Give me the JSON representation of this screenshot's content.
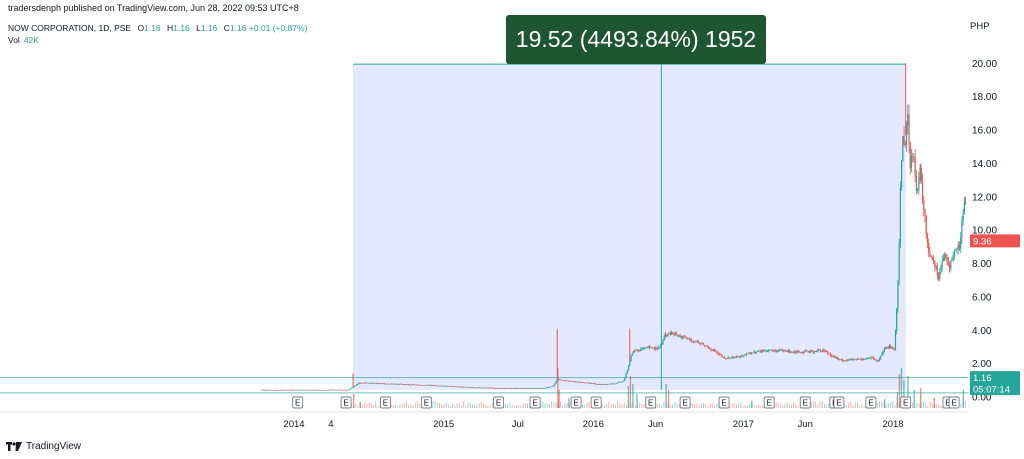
{
  "header": {
    "publisher": "tradersdenph published on TradingView.com, Jun 28, 2022 09:53 UTC+8",
    "symbol": "NOW CORPORATION, 1D, PSE",
    "ohlc": [
      {
        "label": "O",
        "value": "1.16"
      },
      {
        "label": "H",
        "value": "1.16"
      },
      {
        "label": "L",
        "value": "1.16"
      },
      {
        "label": "C",
        "value": "1.16"
      }
    ],
    "change": "+0.01 (+0.87%)",
    "vol_label": "Vol",
    "vol_value": "42K"
  },
  "measure": {
    "text": "19.52 (4493.84%) 1952"
  },
  "footer": {
    "brand": "TradingView"
  },
  "colors": {
    "up": "#26a69a",
    "down": "#ef5350",
    "range_fill": "#dfe4fb",
    "measure_bg": "#1e5631",
    "current_price_tag": "#26a69a",
    "last_price_tag": "#ef5350"
  },
  "chart_data": {
    "type": "candlestick",
    "currency": "PHP",
    "y_ticks": [
      0.0,
      2.0,
      4.0,
      6.0,
      8.0,
      10.0,
      12.0,
      14.0,
      16.0,
      18.0,
      20.0
    ],
    "y_tick_labels": [
      "0.00",
      "2.00",
      "4.00",
      "6.00",
      "8.00",
      "10.00",
      "12.00",
      "14.00",
      "16.00",
      "18.00",
      "20.00"
    ],
    "ylim": [
      0,
      20.8
    ],
    "x_range": [
      "2013-10-15",
      "2018-06-28"
    ],
    "x_ticks": [
      {
        "label": "2014",
        "date": "2014-01-01"
      },
      {
        "label": "4",
        "date": "2014-04-01"
      },
      {
        "label": "2015",
        "date": "2015-01-01"
      },
      {
        "label": "Jul",
        "date": "2015-07-01"
      },
      {
        "label": "2016",
        "date": "2016-01-01"
      },
      {
        "label": "Jun",
        "date": "2016-06-01"
      },
      {
        "label": "2017",
        "date": "2017-01-01"
      },
      {
        "label": "Jun",
        "date": "2017-06-01"
      },
      {
        "label": "2018",
        "date": "2018-01-01"
      }
    ],
    "price_path": [
      [
        "2013-10-15",
        0.42
      ],
      [
        "2014-02-15",
        0.42
      ],
      [
        "2014-05-15",
        0.43
      ],
      [
        "2014-05-25",
        0.6
      ],
      [
        "2014-06-10",
        0.85
      ],
      [
        "2014-09-01",
        0.78
      ],
      [
        "2014-12-01",
        0.7
      ],
      [
        "2015-03-01",
        0.58
      ],
      [
        "2015-06-01",
        0.52
      ],
      [
        "2015-09-01",
        0.52
      ],
      [
        "2015-09-25",
        0.65
      ],
      [
        "2015-10-05",
        1.05
      ],
      [
        "2015-11-01",
        0.95
      ],
      [
        "2015-12-15",
        0.85
      ],
      [
        "2016-01-20",
        0.75
      ],
      [
        "2016-02-25",
        0.8
      ],
      [
        "2016-03-15",
        0.98
      ],
      [
        "2016-03-25",
        1.7
      ],
      [
        "2016-04-05",
        2.7
      ],
      [
        "2016-04-25",
        2.85
      ],
      [
        "2016-05-15",
        2.95
      ],
      [
        "2016-06-10",
        2.95
      ],
      [
        "2016-06-25",
        3.7
      ],
      [
        "2016-07-10",
        3.8
      ],
      [
        "2016-08-15",
        3.5
      ],
      [
        "2016-09-20",
        3.2
      ],
      [
        "2016-10-20",
        2.8
      ],
      [
        "2016-11-15",
        2.3
      ],
      [
        "2016-12-15",
        2.4
      ],
      [
        "2017-01-20",
        2.65
      ],
      [
        "2017-03-01",
        2.8
      ],
      [
        "2017-04-15",
        2.75
      ],
      [
        "2017-06-01",
        2.7
      ],
      [
        "2017-07-15",
        2.8
      ],
      [
        "2017-08-25",
        2.2
      ],
      [
        "2017-10-05",
        2.25
      ],
      [
        "2017-11-10",
        2.35
      ],
      [
        "2017-11-25",
        2.1
      ],
      [
        "2017-12-10",
        2.9
      ],
      [
        "2017-12-25",
        3.0
      ],
      [
        "2018-01-05",
        2.9
      ],
      [
        "2018-01-10",
        5.3
      ],
      [
        "2018-01-15",
        8.2
      ],
      [
        "2018-01-20",
        13.5
      ],
      [
        "2018-01-26",
        16.0
      ],
      [
        "2018-01-30",
        15.0
      ],
      [
        "2018-02-05",
        17.0
      ],
      [
        "2018-02-12",
        14.0
      ],
      [
        "2018-02-20",
        15.0
      ],
      [
        "2018-02-28",
        12.0
      ],
      [
        "2018-03-08",
        13.5
      ],
      [
        "2018-03-18",
        11.0
      ],
      [
        "2018-03-28",
        8.8
      ],
      [
        "2018-04-10",
        8.2
      ],
      [
        "2018-04-22",
        7.2
      ],
      [
        "2018-05-05",
        8.5
      ],
      [
        "2018-05-18",
        7.8
      ],
      [
        "2018-06-01",
        8.8
      ],
      [
        "2018-06-12",
        9.0
      ],
      [
        "2018-06-20",
        11.0
      ],
      [
        "2018-06-28",
        12.0
      ]
    ],
    "spikes": [
      {
        "date": "2014-05-25",
        "high": 1.4
      },
      {
        "date": "2015-10-05",
        "high": 4.1
      },
      {
        "date": "2016-03-30",
        "high": 4.1
      },
      {
        "date": "2016-06-25",
        "high": 3.9
      },
      {
        "date": "2018-02-01",
        "high": 20.0
      },
      {
        "date": "2018-03-10",
        "high": 14.0
      },
      {
        "date": "2018-06-25",
        "high": 12.0
      }
    ],
    "measure_range": {
      "start_date": "2014-05-25",
      "end_date": "2018-02-01",
      "low": 0.43,
      "high": 19.95,
      "mid_date": "2016-06-15"
    },
    "horizontal_levels": [
      1.16,
      0.25
    ],
    "price_tags": [
      {
        "value": 9.36,
        "label": "9.36",
        "kind": "last"
      },
      {
        "value": 1.16,
        "label": "1.16",
        "kind": "current",
        "countdown": "05:07:14"
      }
    ],
    "earnings_markers": [
      "2014-01-10",
      "2014-05-08",
      "2014-08-12",
      "2014-11-20",
      "2015-05-15",
      "2015-08-12",
      "2015-11-20",
      "2016-01-08",
      "2016-05-20",
      "2016-08-12",
      "2016-11-15",
      "2017-03-05",
      "2017-06-01",
      "2017-08-12",
      "2017-08-22",
      "2017-11-08",
      "2018-02-01",
      "2018-05-15",
      "2018-05-30"
    ],
    "volume": [
      [
        "2014-05-25",
        0.35
      ],
      [
        "2014-06-10",
        0.15
      ],
      [
        "2015-10-05",
        1.0
      ],
      [
        "2015-10-08",
        0.45
      ],
      [
        "2015-11-01",
        0.25
      ],
      [
        "2016-03-25",
        0.55
      ],
      [
        "2016-03-30",
        0.8
      ],
      [
        "2016-04-05",
        0.6
      ],
      [
        "2016-04-15",
        0.35
      ],
      [
        "2016-06-25",
        0.6
      ],
      [
        "2016-07-01",
        0.45
      ],
      [
        "2016-08-15",
        0.2
      ],
      [
        "2017-01-20",
        0.18
      ],
      [
        "2017-06-01",
        0.15
      ],
      [
        "2017-12-10",
        0.22
      ],
      [
        "2018-01-10",
        0.4
      ],
      [
        "2018-01-15",
        0.85
      ],
      [
        "2018-01-20",
        1.0
      ],
      [
        "2018-01-26",
        0.7
      ],
      [
        "2018-02-05",
        0.8
      ],
      [
        "2018-02-20",
        0.45
      ],
      [
        "2018-03-08",
        0.5
      ],
      [
        "2018-04-10",
        0.25
      ],
      [
        "2018-06-20",
        0.45
      ]
    ]
  }
}
